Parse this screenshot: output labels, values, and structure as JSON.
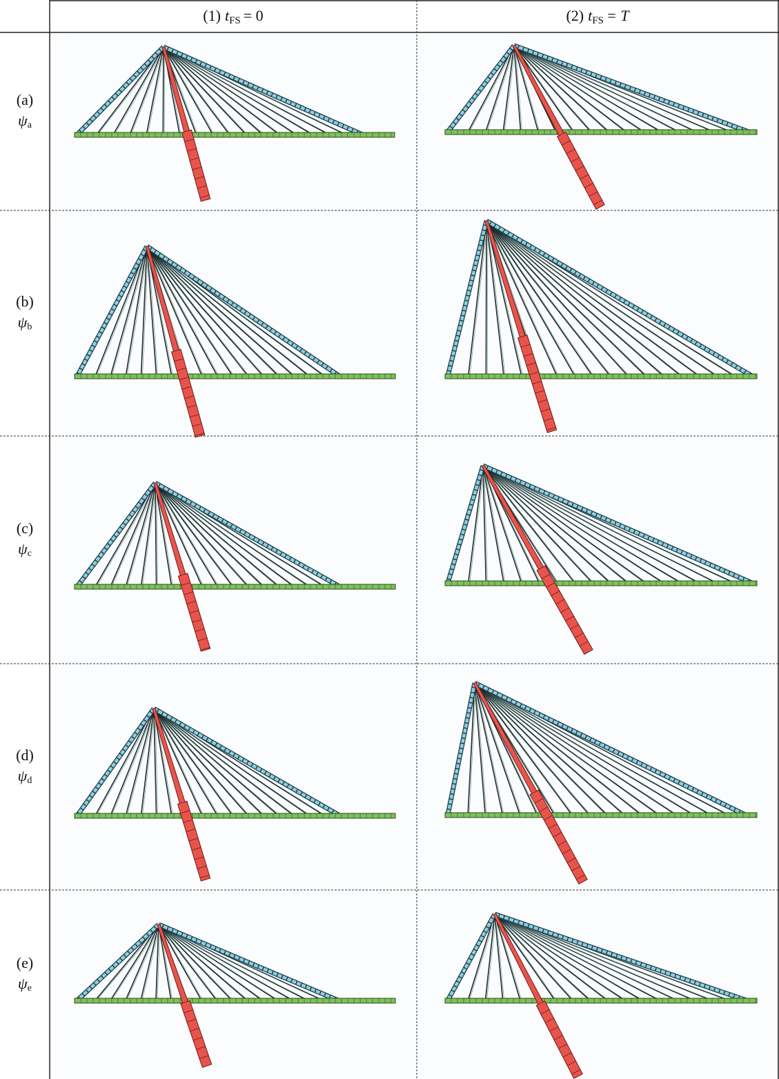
{
  "header": {
    "columns": [
      {
        "prefix": "(1)",
        "symbol": "t",
        "subscript": "FS",
        "equals": "= 0"
      },
      {
        "prefix": "(2)",
        "symbol": "t",
        "subscript": "FS",
        "equals": "= T"
      }
    ]
  },
  "rows": [
    {
      "label": "(a)",
      "symbol": "ψ",
      "subscript": "a"
    },
    {
      "label": "(b)",
      "symbol": "ψ",
      "subscript": "b"
    },
    {
      "label": "(c)",
      "symbol": "ψ",
      "subscript": "c"
    },
    {
      "label": "(d)",
      "symbol": "ψ",
      "subscript": "d"
    },
    {
      "label": "(e)",
      "symbol": "ψ",
      "subscript": "e"
    }
  ]
}
